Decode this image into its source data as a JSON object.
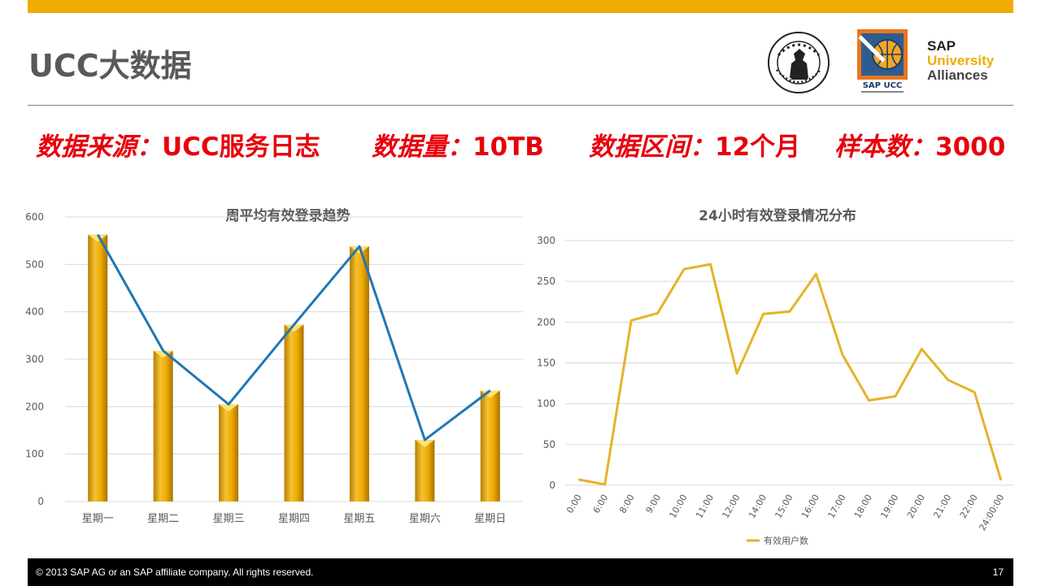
{
  "slide": {
    "title": "UCC大数据",
    "page_number": "17",
    "copyright": "© 2013 SAP AG or an SAP affiliate company. All rights reserved."
  },
  "logos": {
    "sap_ucc_text": "SAP UCC",
    "sap_ua": {
      "line1": "SAP",
      "line2": "University",
      "line3": "Alliances"
    }
  },
  "stats": [
    {
      "label": "数据来源：",
      "value": "UCC服务日志"
    },
    {
      "label": "数据量：",
      "value": "10TB"
    },
    {
      "label": "数据区间：",
      "value": "12个月"
    },
    {
      "label": "样本数：",
      "value": "3000"
    }
  ],
  "colors": {
    "accent": "#f0ab00",
    "stat_red": "#e8000b",
    "trend_blue": "#1f77b4",
    "line_gold": "#e5b328"
  },
  "chart_data": [
    {
      "type": "bar",
      "title": "周平均有效登录趋势",
      "categories": [
        "星期一",
        "星期二",
        "星期三",
        "星期四",
        "星期五",
        "星期六",
        "星期日"
      ],
      "values": [
        563,
        318,
        205,
        373,
        538,
        130,
        234
      ],
      "overlay_line": {
        "type": "line",
        "values": [
          563,
          318,
          205,
          373,
          538,
          130,
          234
        ]
      },
      "ylim": [
        0,
        600
      ],
      "yticks": [
        0,
        100,
        200,
        300,
        400,
        500,
        600
      ],
      "grid": true,
      "legend": "none"
    },
    {
      "type": "line",
      "title": "24小时有效登录情况分布",
      "categories": [
        "0:00",
        "6:00",
        "8:00",
        "9:00",
        "10:00",
        "11:00",
        "12:00",
        "14:00",
        "15:00",
        "16:00",
        "17:00",
        "18:00",
        "19:00",
        "20:00",
        "21:00",
        "22:00",
        "24:00:00"
      ],
      "series": [
        {
          "name": "有效用户数",
          "values": [
            7,
            1,
            202,
            211,
            265,
            271,
            137,
            210,
            213,
            259,
            160,
            104,
            109,
            167,
            129,
            114,
            6
          ]
        }
      ],
      "ylim": [
        0,
        300
      ],
      "yticks": [
        0,
        50,
        100,
        150,
        200,
        250,
        300
      ],
      "grid": true,
      "legend": "bottom"
    }
  ]
}
